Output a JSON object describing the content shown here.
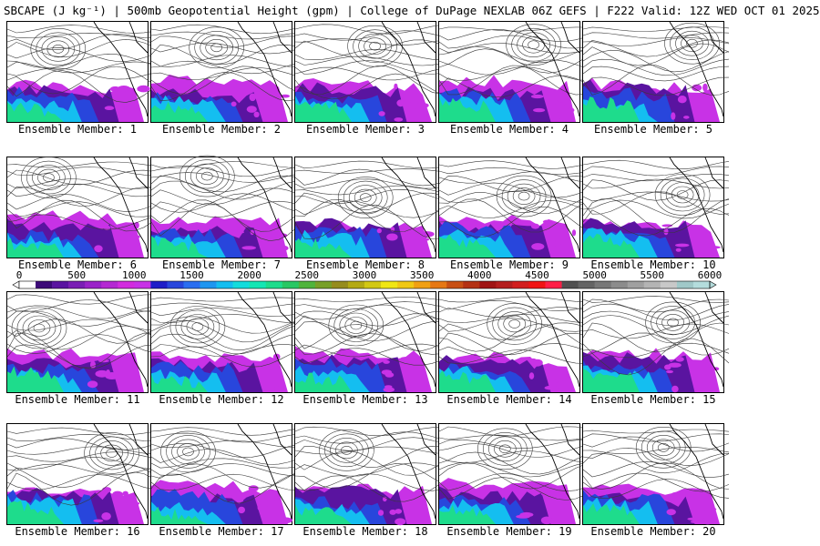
{
  "title": "SBCAPE (J kg⁻¹) | 500mb Geopotential Height (gpm) | College of DuPage NEXLAB 06Z GEFS | F222 Valid: 12Z WED OCT 01 2025",
  "member_label_prefix": "Ensemble Member: ",
  "members": [
    {
      "label": "Ensemble Member: 1"
    },
    {
      "label": "Ensemble Member: 2"
    },
    {
      "label": "Ensemble Member: 3"
    },
    {
      "label": "Ensemble Member: 4"
    },
    {
      "label": "Ensemble Member: 5"
    },
    {
      "label": "Ensemble Member: 6"
    },
    {
      "label": "Ensemble Member: 7"
    },
    {
      "label": "Ensemble Member: 8"
    },
    {
      "label": "Ensemble Member: 9"
    },
    {
      "label": "Ensemble Member: 10"
    },
    {
      "label": "Ensemble Member: 11"
    },
    {
      "label": "Ensemble Member: 12"
    },
    {
      "label": "Ensemble Member: 13"
    },
    {
      "label": "Ensemble Member: 14"
    },
    {
      "label": "Ensemble Member: 15"
    },
    {
      "label": "Ensemble Member: 16"
    },
    {
      "label": "Ensemble Member: 17"
    },
    {
      "label": "Ensemble Member: 18"
    },
    {
      "label": "Ensemble Member: 19"
    },
    {
      "label": "Ensemble Member: 20"
    }
  ],
  "colorbar": {
    "min": 0,
    "max": 6000,
    "tick_labels": [
      "0",
      "500",
      "1000",
      "1500",
      "2000",
      "2500",
      "3000",
      "3500",
      "4000",
      "4500",
      "5000",
      "5500",
      "6000"
    ],
    "colors": [
      "#ffffff",
      "#3c0a78",
      "#5a14a0",
      "#7a1eb4",
      "#9a22c8",
      "#b428d2",
      "#d22cde",
      "#c832e6",
      "#1e1ec8",
      "#2846dc",
      "#2a6ef0",
      "#1e96f0",
      "#14bef0",
      "#14dcdc",
      "#14e6b4",
      "#1edc8c",
      "#28c864",
      "#50b43c",
      "#78a028",
      "#968c1e",
      "#b4aa14",
      "#d2c814",
      "#f0e614",
      "#f0c814",
      "#f0a014",
      "#e67814",
      "#c85014",
      "#b43214",
      "#a01414",
      "#b41e1e",
      "#d21e1e",
      "#f01414",
      "#ff1e46",
      "#505050",
      "#646464",
      "#787878",
      "#8c8c8c",
      "#a0a0a0",
      "#b4b4b4",
      "#c8c8c8",
      "#a0c8c8",
      "#b4dcdc"
    ]
  },
  "colors": {
    "contour": "#3a3a3a",
    "border": "#000000",
    "coast": "#000000"
  }
}
